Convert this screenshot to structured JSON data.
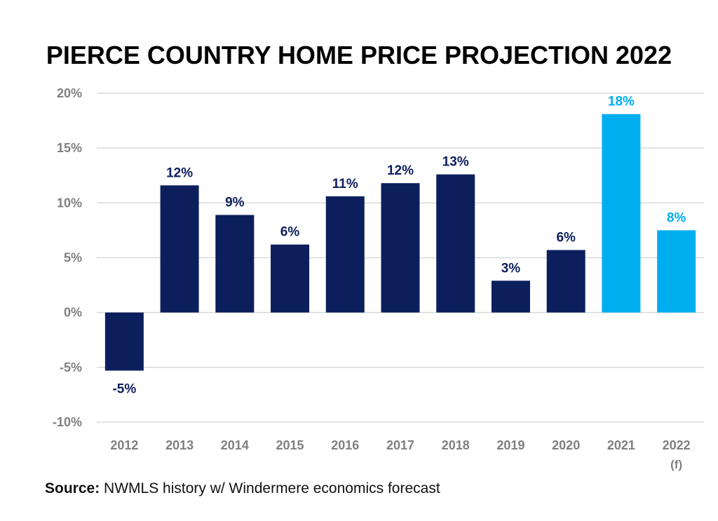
{
  "title": "PIERCE COUNTRY HOME PRICE PROJECTION 2022",
  "source": {
    "label": "Source:",
    "text": "NWMLS history w/ Windermere economics forecast"
  },
  "colors": {
    "historical": "#0c1f5c",
    "forecast": "#00aeef",
    "axis_text": "#7f7f7f",
    "grid": "#d9d9d9"
  },
  "chart_data": {
    "type": "bar",
    "title": "PIERCE COUNTRY HOME PRICE PROJECTION 2022",
    "categories": [
      "2012",
      "2013",
      "2014",
      "2015",
      "2016",
      "2017",
      "2018",
      "2019",
      "2020",
      "2021",
      "2022"
    ],
    "category_sublabels": [
      "",
      "",
      "",
      "",
      "",
      "",
      "",
      "",
      "",
      "",
      "(f)"
    ],
    "values": [
      -5.3,
      11.6,
      8.9,
      6.2,
      10.6,
      11.8,
      12.6,
      2.9,
      5.7,
      18.1,
      7.5
    ],
    "data_labels": [
      "-5%",
      "12%",
      "9%",
      "6%",
      "11%",
      "12%",
      "13%",
      "3%",
      "6%",
      "18%",
      "8%"
    ],
    "highlight": [
      false,
      false,
      false,
      false,
      false,
      false,
      false,
      false,
      false,
      true,
      true
    ],
    "y_ticks": [
      20,
      15,
      10,
      5,
      0,
      -5,
      -10
    ],
    "y_tick_labels": [
      "20%",
      "15%",
      "10%",
      "5%",
      "0%",
      "-5%",
      "-10%"
    ],
    "ylim": [
      -10,
      20
    ],
    "grid": true,
    "xlabel": "",
    "ylabel": ""
  }
}
